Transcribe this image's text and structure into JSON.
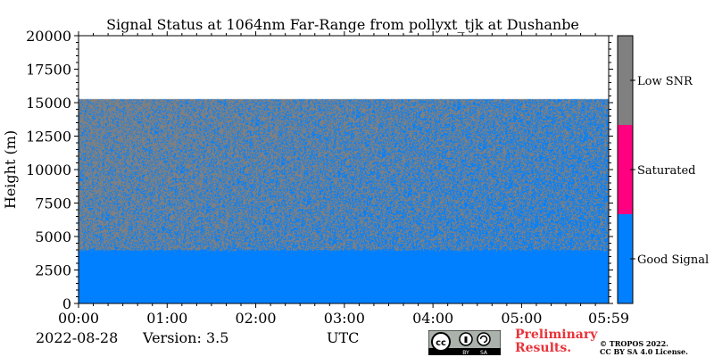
{
  "chart_data": {
    "type": "heatmap",
    "title": "Signal Status at 1064nm Far-Range from pollyxt_tjk at Dushanbe",
    "ylabel": "Height (m)",
    "xlabel": "UTC",
    "x_ticks": [
      "00:00",
      "01:00",
      "02:00",
      "03:00",
      "04:00",
      "05:00",
      "05:59"
    ],
    "x_tick_hours": [
      0,
      1,
      2,
      3,
      4,
      5,
      5.983
    ],
    "xlim_hours": [
      0,
      5.983
    ],
    "y_ticks": [
      "0",
      "2500",
      "5000",
      "7500",
      "10000",
      "12500",
      "15000",
      "17500",
      "20000"
    ],
    "y_tick_values": [
      0,
      2500,
      5000,
      7500,
      10000,
      12500,
      15000,
      17500,
      20000
    ],
    "ylim": [
      0,
      20000
    ],
    "colorbar": {
      "labels": [
        "Low SNR",
        "Saturated",
        "Good Signal"
      ],
      "colors": [
        "#808080",
        "#ff0080",
        "#0080ff"
      ]
    },
    "regions": [
      {
        "status": "Good Signal",
        "height_range": [
          0,
          4000
        ],
        "fraction_good": 1.0
      },
      {
        "status": "mixed",
        "height_range": [
          4000,
          15300
        ],
        "fraction_good_start": 0.2,
        "fraction_good_end": 0.45
      },
      {
        "status": "no data",
        "height_range": [
          15300,
          20000
        ]
      }
    ],
    "grid": false
  },
  "footer": {
    "date": "2022-08-28",
    "version": "Version: 3.5",
    "preliminary_line1": "Preliminary",
    "preliminary_line2": "Results.",
    "copyright_line1": "© TROPOS 2022.",
    "copyright_line2": "CC BY SA 4.0 License.",
    "cc_badge_text": [
      "cc",
      "BY",
      "SA"
    ]
  }
}
